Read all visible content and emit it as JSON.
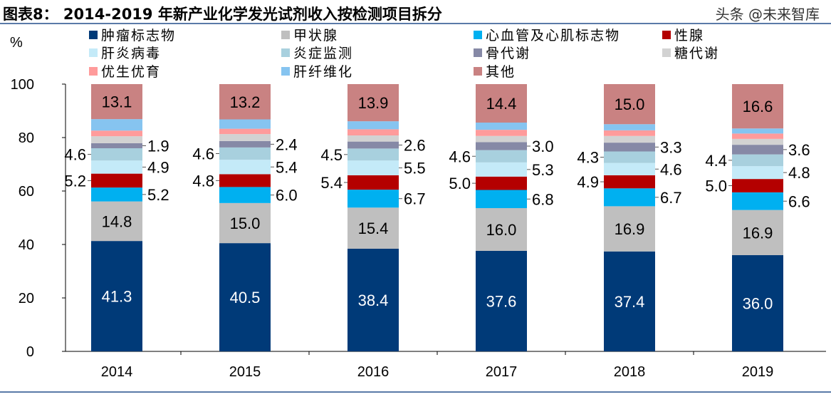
{
  "title": "图表8：  2014-2019 年新产业化学发光试剂收入按检测项目拆分",
  "watermark": "头条 @未来智库",
  "chart_data": {
    "type": "bar",
    "stacked": true,
    "title": "图表8：  2014-2019 年新产业化学发光试剂收入按检测项目拆分",
    "ylabel": "%",
    "ylim": [
      0,
      100
    ],
    "yticks": [
      0,
      20,
      40,
      60,
      80,
      100
    ],
    "grid": false,
    "legend": "top",
    "categories": [
      "2014",
      "2015",
      "2016",
      "2017",
      "2018",
      "2019"
    ],
    "series": [
      {
        "name": "肿瘤标志物",
        "color": "#003a78",
        "label_color": "#ffffff",
        "labeled": true,
        "values": [
          41.3,
          40.5,
          38.4,
          37.6,
          37.4,
          36.0
        ]
      },
      {
        "name": "甲状腺",
        "color": "#bfbfbf",
        "label_color": "#000000",
        "labeled": true,
        "values": [
          14.8,
          15.0,
          15.4,
          16.0,
          16.9,
          16.9
        ]
      },
      {
        "name": "心血管及心肌标志物",
        "color": "#00b0f0",
        "label_color": "#000000",
        "labeled": true,
        "values": [
          5.2,
          6.0,
          6.7,
          6.8,
          6.7,
          6.6
        ]
      },
      {
        "name": "性腺",
        "color": "#b40000",
        "label_color": "#ffffff",
        "labeled": true,
        "values": [
          5.2,
          4.8,
          5.4,
          5.0,
          4.9,
          5.0
        ]
      },
      {
        "name": "肝炎病毒",
        "color": "#c4eaf8",
        "label_color": "#000000",
        "labeled": true,
        "values": [
          4.9,
          5.4,
          5.5,
          5.3,
          4.6,
          4.8
        ]
      },
      {
        "name": "炎症监测",
        "color": "#a8d0de",
        "label_color": "#000000",
        "labeled": true,
        "values": [
          4.6,
          4.6,
          4.5,
          4.6,
          4.3,
          4.4
        ]
      },
      {
        "name": "骨代谢",
        "color": "#8689a6",
        "label_color": "#000000",
        "labeled": true,
        "values": [
          1.9,
          2.4,
          2.6,
          3.0,
          3.3,
          3.6
        ]
      },
      {
        "name": "糖代谢",
        "color": "#d2d2d2",
        "label_color": "#000000",
        "labeled": false,
        "values": [
          2.6,
          2.6,
          2.3,
          2.3,
          2.5,
          2.2
        ]
      },
      {
        "name": "优生优育",
        "color": "#ff9b9b",
        "label_color": "#000000",
        "labeled": false,
        "values": [
          2.1,
          2.0,
          2.3,
          2.3,
          2.1,
          2.0
        ]
      },
      {
        "name": "肝纤维化",
        "color": "#86c4f0",
        "label_color": "#000000",
        "labeled": false,
        "values": [
          4.3,
          3.5,
          3.0,
          2.7,
          2.3,
          1.9
        ]
      },
      {
        "name": "其他",
        "color": "#c98282",
        "label_color": "#000000",
        "labeled": true,
        "values": [
          13.1,
          13.2,
          13.9,
          14.4,
          15.0,
          16.6
        ]
      }
    ]
  }
}
